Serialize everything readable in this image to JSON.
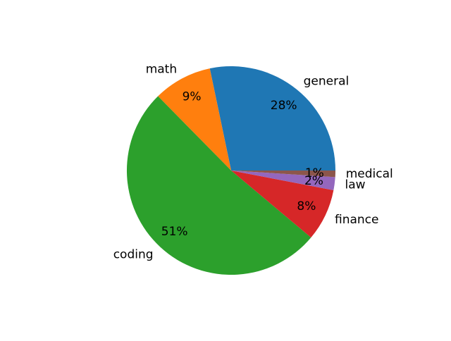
{
  "chart_data": {
    "type": "pie",
    "title": "",
    "start_angle_deg": 0,
    "direction": "counterclockwise",
    "legend": "none",
    "slices": [
      {
        "label": "general",
        "value": 28,
        "pct_label": "28%",
        "color": "#1f77b4"
      },
      {
        "label": "math",
        "value": 9,
        "pct_label": "9%",
        "color": "#ff7f0e"
      },
      {
        "label": "coding",
        "value": 51,
        "pct_label": "51%",
        "color": "#2ca02c"
      },
      {
        "label": "finance",
        "value": 8,
        "pct_label": "8%",
        "color": "#d62728"
      },
      {
        "label": "law",
        "value": 2,
        "pct_label": "2%",
        "color": "#9467bd"
      },
      {
        "label": "medical",
        "value": 1,
        "pct_label": "1%",
        "color": "#8c564b"
      }
    ]
  }
}
